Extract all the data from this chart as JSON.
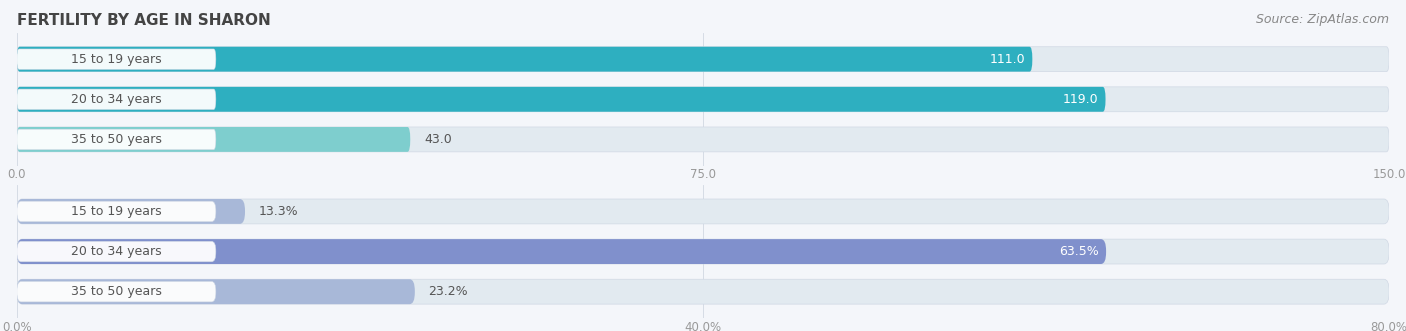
{
  "title": "FERTILITY BY AGE IN SHARON",
  "source": "Source: ZipAtlas.com",
  "top_chart": {
    "categories": [
      "15 to 19 years",
      "20 to 34 years",
      "35 to 50 years"
    ],
    "values": [
      111.0,
      119.0,
      43.0
    ],
    "xmax": 150.0,
    "xticks": [
      0.0,
      75.0,
      150.0
    ],
    "xtick_labels": [
      "0.0",
      "75.0",
      "150.0"
    ],
    "bar_color_0": "#2EAFC0",
    "bar_color_1": "#2EAFC0",
    "bar_color_2": "#7ECECE",
    "label_inside": [
      true,
      true,
      false
    ],
    "bar_bg_color": "#E2EAF0"
  },
  "bottom_chart": {
    "categories": [
      "15 to 19 years",
      "20 to 34 years",
      "35 to 50 years"
    ],
    "values": [
      13.3,
      63.5,
      23.2
    ],
    "xmax": 80.0,
    "xticks": [
      0.0,
      40.0,
      80.0
    ],
    "xtick_labels": [
      "0.0%",
      "40.0%",
      "80.0%"
    ],
    "bar_color_0": "#A8B8D8",
    "bar_color_1": "#8090CC",
    "bar_color_2": "#A8B8D8",
    "label_inside": [
      false,
      true,
      false
    ],
    "bar_bg_color": "#E2EAF0"
  },
  "title_fontsize": 11,
  "source_fontsize": 9,
  "cat_fontsize": 9,
  "val_fontsize": 9,
  "tick_fontsize": 8.5,
  "bar_height": 0.62,
  "bg_color": "#F4F6FA",
  "text_color": "#444444",
  "label_text_color": "#555555",
  "white": "#FFFFFF",
  "grid_color": "#C8D0DC"
}
